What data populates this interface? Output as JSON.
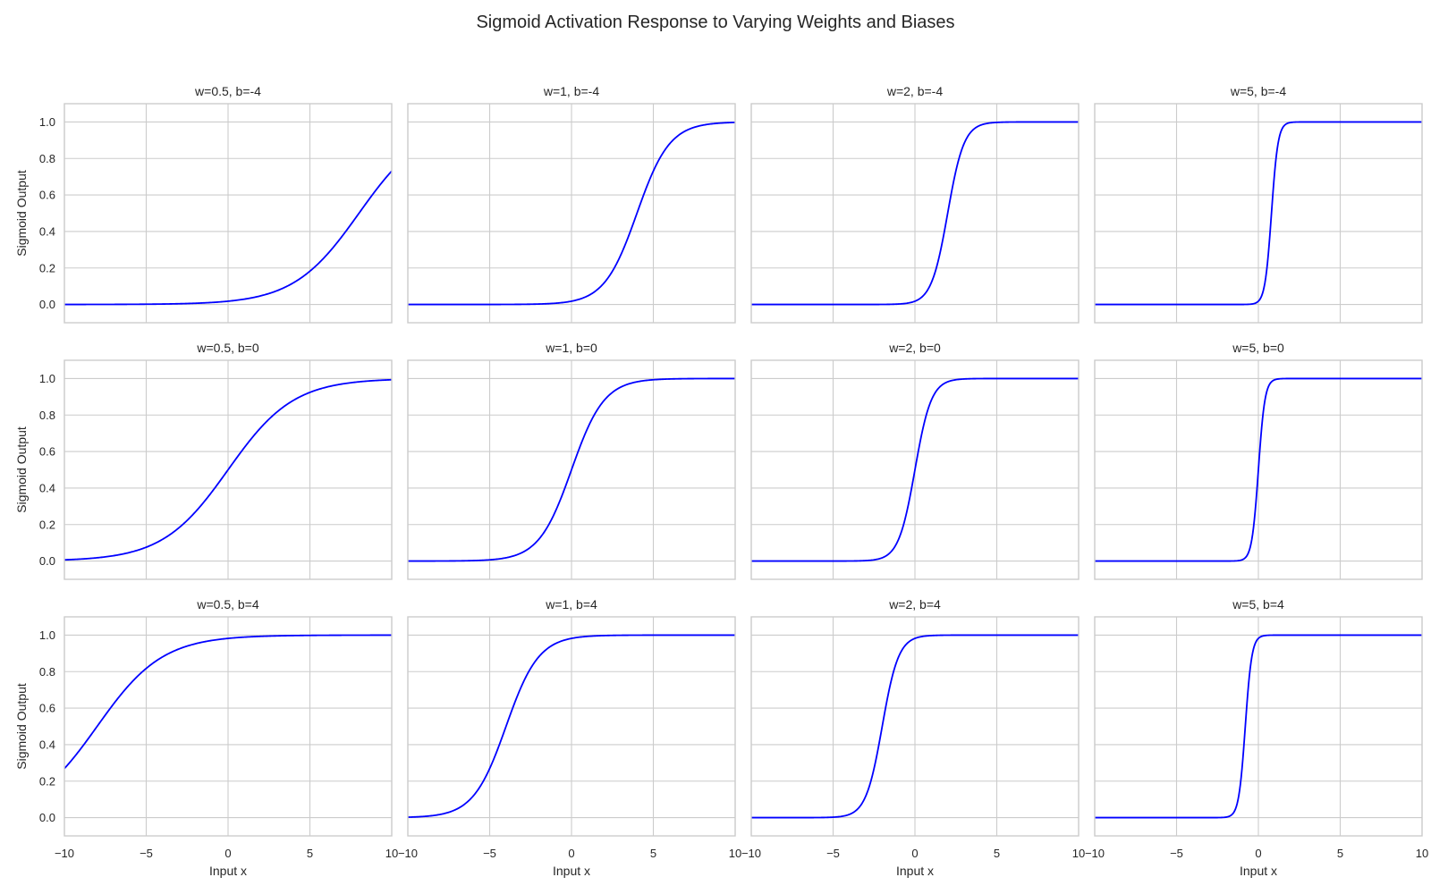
{
  "chart_data": {
    "type": "line",
    "title": "Sigmoid Activation Response to Varying Weights and Biases",
    "function": "sigmoid(w*x + b)",
    "xlabel": "Input x",
    "ylabel": "Sigmoid Output",
    "xlim": [
      -10,
      10
    ],
    "ylim": [
      -0.1,
      1.1
    ],
    "xticks": [
      -10,
      -5,
      0,
      5,
      10
    ],
    "yticks": [
      0.0,
      0.2,
      0.4,
      0.6,
      0.8,
      1.0
    ],
    "ytick_labels": [
      "0.0",
      "0.2",
      "0.4",
      "0.6",
      "0.8",
      "1.0"
    ],
    "grid": true,
    "line_color": "#0000ff",
    "grid_color": "#cccccc",
    "rows": 3,
    "cols": 4,
    "panels": [
      {
        "title": "w=0.5, b=-4",
        "w": 0.5,
        "b": -4
      },
      {
        "title": "w=1, b=-4",
        "w": 1,
        "b": -4
      },
      {
        "title": "w=2, b=-4",
        "w": 2,
        "b": -4
      },
      {
        "title": "w=5, b=-4",
        "w": 5,
        "b": -4
      },
      {
        "title": "w=0.5, b=0",
        "w": 0.5,
        "b": 0
      },
      {
        "title": "w=1, b=0",
        "w": 1,
        "b": 0
      },
      {
        "title": "w=2, b=0",
        "w": 2,
        "b": 0
      },
      {
        "title": "w=5, b=0",
        "w": 5,
        "b": 0
      },
      {
        "title": "w=0.5, b=4",
        "w": 0.5,
        "b": 4
      },
      {
        "title": "w=1, b=4",
        "w": 1,
        "b": 4
      },
      {
        "title": "w=2, b=4",
        "w": 2,
        "b": 4
      },
      {
        "title": "w=5, b=4",
        "w": 5,
        "b": 4
      }
    ]
  }
}
